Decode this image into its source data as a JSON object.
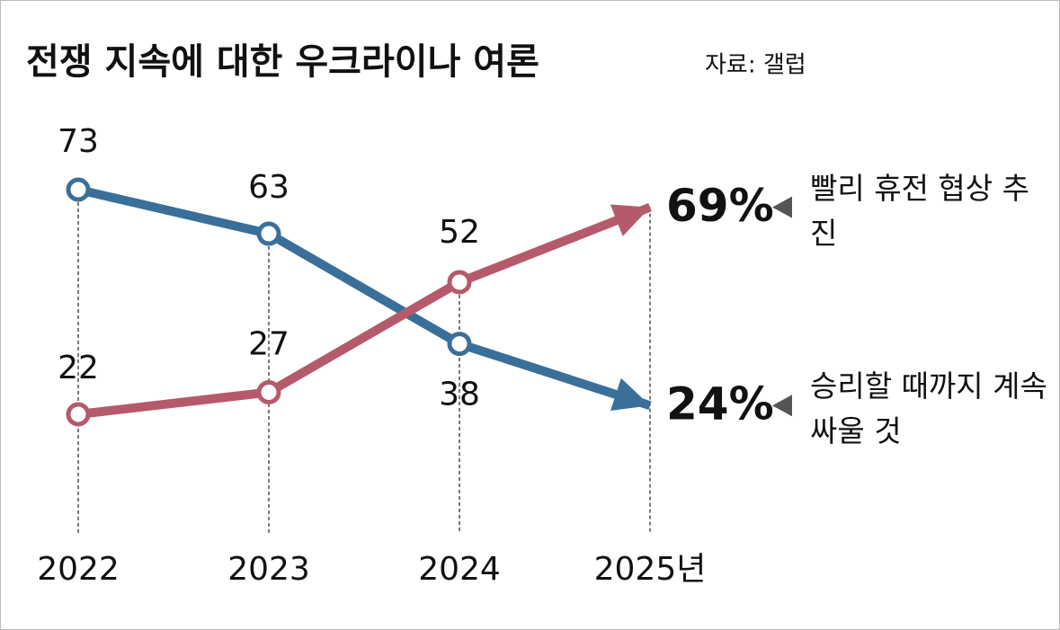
{
  "chart_data": {
    "type": "line",
    "title": "전쟁 지속에 대한 우크라이나 여론",
    "source": "자료: 갤럽",
    "categories": [
      "2022",
      "2023",
      "2024",
      "2025년"
    ],
    "series": [
      {
        "name": "승리할 때까지 계속 싸울 것",
        "color": "#3a6f9a",
        "values": [
          73,
          63,
          38,
          24
        ],
        "value_labels": [
          "73",
          "63",
          "38",
          "24%"
        ]
      },
      {
        "name": "빨리 휴전 협상 추진",
        "color": "#b55a6b",
        "values": [
          22,
          27,
          52,
          69
        ],
        "value_labels": [
          "22",
          "27",
          "52",
          "69%"
        ]
      }
    ]
  }
}
